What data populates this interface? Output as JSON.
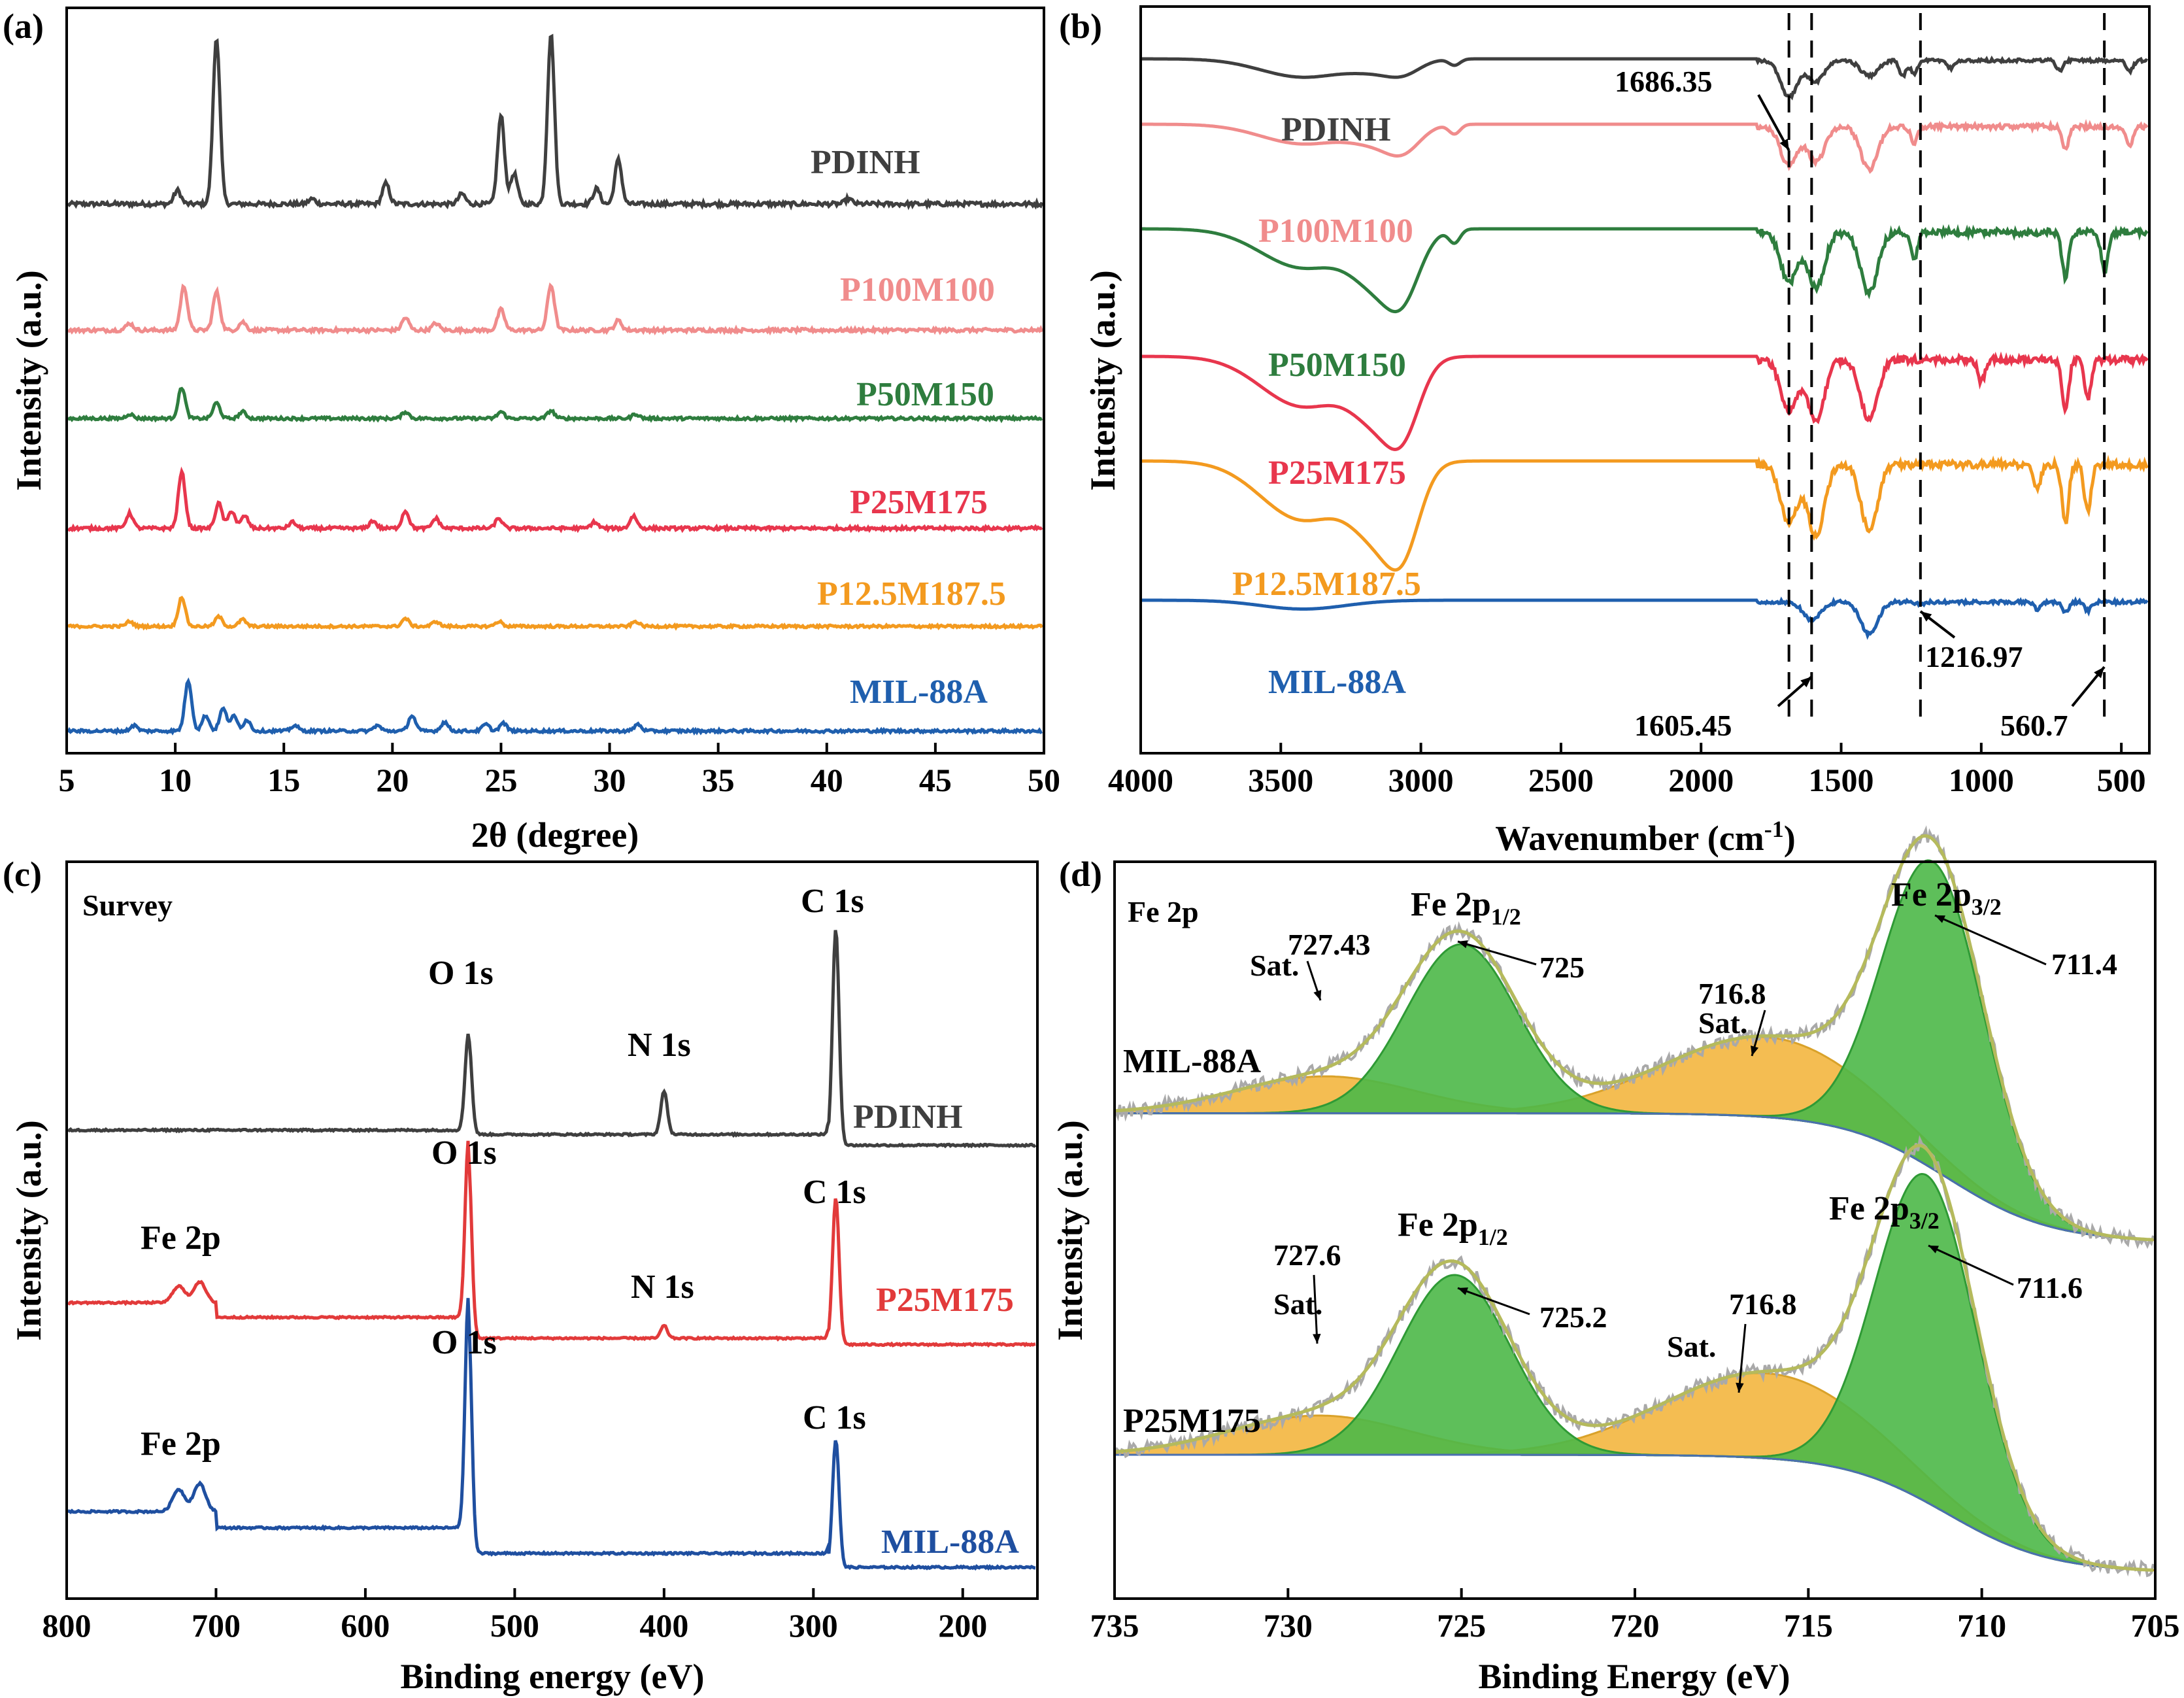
{
  "colors": {
    "PDINH": "#3f3f3f",
    "P100M100": "#f08c8c",
    "P50M150": "#2e7d3e",
    "P25M175": "#e8364d",
    "P12.5M187.5": "#f39a1f",
    "MIL-88A": "#1f5fae",
    "survey_PDINH": "#3f3f3f",
    "survey_P25M175": "#e23a3a",
    "survey_MIL88A": "#1f4fa0",
    "fit_green": "#4cb848",
    "fit_yellow": "#f2b134",
    "envelope": "#b5ba5c",
    "raw_gray": "#a9a9a9"
  },
  "chart_data": [
    {
      "panel": "(a)",
      "type": "line",
      "xlabel": "2θ (degree)",
      "ylabel": "Intensity (a.u.)",
      "xlim": [
        5,
        50
      ],
      "xticks": [
        5,
        10,
        15,
        20,
        25,
        30,
        35,
        40,
        45,
        50
      ],
      "y_scale": "stacked, arbitrary units",
      "series": [
        {
          "name": "PDINH",
          "peaks_2theta": [
            10.1,
            11.9,
            16.3,
            19.7,
            23.2,
            25.0,
            25.6,
            27.3,
            29.4,
            30.4,
            41.0
          ],
          "relative_heights": [
            0.08,
            0.98,
            0.03,
            0.12,
            0.06,
            0.52,
            0.18,
            1.0,
            0.09,
            0.26,
            0.03
          ]
        },
        {
          "name": "P100M100",
          "peaks_2theta": [
            7.9,
            10.4,
            11.9,
            13.1,
            20.6,
            22.0,
            25.0,
            27.3,
            30.4
          ],
          "relative_heights": [
            0.05,
            0.32,
            0.28,
            0.06,
            0.09,
            0.05,
            0.15,
            0.33,
            0.07
          ]
        },
        {
          "name": "P50M150",
          "peaks_2theta": [
            7.9,
            10.3,
            11.9,
            13.1,
            20.6,
            25.0,
            27.3,
            31.2
          ],
          "relative_heights": [
            0.04,
            0.28,
            0.14,
            0.06,
            0.06,
            0.06,
            0.07,
            0.04
          ]
        },
        {
          "name": "P25M175",
          "peaks_2theta": [
            7.9,
            10.3,
            12.0,
            12.6,
            13.2,
            15.4,
            19.1,
            20.6,
            22.0,
            24.9,
            29.3,
            31.1
          ],
          "relative_heights": [
            0.12,
            0.45,
            0.2,
            0.14,
            0.1,
            0.05,
            0.06,
            0.14,
            0.08,
            0.08,
            0.05,
            0.1
          ]
        },
        {
          "name": "P12.5M187.5",
          "peaks_2theta": [
            7.9,
            10.3,
            12.0,
            13.1,
            20.6,
            22.0,
            24.9,
            31.2
          ],
          "relative_heights": [
            0.05,
            0.3,
            0.1,
            0.07,
            0.08,
            0.05,
            0.05,
            0.05
          ]
        },
        {
          "name": "MIL-88A",
          "peaks_2theta": [
            8.1,
            10.6,
            11.4,
            12.2,
            12.7,
            13.3,
            15.5,
            19.3,
            20.9,
            22.4,
            24.3,
            25.1,
            31.3
          ],
          "relative_heights": [
            0.05,
            0.45,
            0.14,
            0.2,
            0.13,
            0.1,
            0.05,
            0.05,
            0.14,
            0.08,
            0.06,
            0.07,
            0.06
          ]
        }
      ]
    },
    {
      "panel": "(b)",
      "type": "line",
      "xlabel": "Wavenumber (cm",
      "xlabel_sup": "-1",
      "xlabel_close": ")",
      "ylabel": "Intensity (a.u.)",
      "xlim": [
        4000,
        400
      ],
      "xticks": [
        4000,
        3500,
        3000,
        2500,
        2000,
        1500,
        1000,
        500
      ],
      "dashed_lines_cm1": [
        1686.35,
        1605.45,
        1216.97,
        560.7
      ],
      "annotations": [
        "1686.35",
        "1605.45",
        "1216.97",
        "560.7"
      ],
      "series": [
        {
          "name": "PDINH",
          "bands_cm1": [
            3420,
            3150,
            3060,
            2880,
            1686,
            1590,
            1400,
            1280,
            1240,
            1110,
            720,
            470
          ],
          "relative_depths": [
            0.35,
            0.18,
            0.2,
            0.12,
            0.7,
            0.4,
            0.3,
            0.3,
            0.25,
            0.15,
            0.2,
            0.2
          ]
        },
        {
          "name": "P100M100",
          "bands_cm1": [
            3420,
            3150,
            3060,
            2880,
            1686,
            1590,
            1400,
            1240,
            700,
            470
          ],
          "relative_depths": [
            0.25,
            0.2,
            0.25,
            0.12,
            0.5,
            0.45,
            0.55,
            0.2,
            0.3,
            0.25
          ]
        },
        {
          "name": "P50M150",
          "bands_cm1": [
            3420,
            3150,
            3060,
            2880,
            1686,
            1590,
            1400,
            1240,
            700,
            560
          ],
          "relative_depths": [
            0.35,
            0.45,
            0.4,
            0.12,
            0.45,
            0.5,
            0.55,
            0.25,
            0.4,
            0.35
          ]
        },
        {
          "name": "P25M175",
          "bands_cm1": [
            3420,
            3150,
            3060,
            1686,
            1590,
            1400,
            1000,
            700,
            620
          ],
          "relative_depths": [
            0.45,
            0.5,
            0.45,
            0.45,
            0.55,
            0.55,
            0.2,
            0.45,
            0.35
          ]
        },
        {
          "name": "P12.5M187.5",
          "bands_cm1": [
            3420,
            3150,
            3060,
            1686,
            1590,
            1400,
            800,
            700,
            620
          ],
          "relative_depths": [
            0.5,
            0.55,
            0.5,
            0.5,
            0.6,
            0.55,
            0.2,
            0.5,
            0.4
          ]
        },
        {
          "name": "MIL-88A",
          "bands_cm1": [
            3420,
            1605,
            1400,
            1216,
            800,
            700,
            620
          ],
          "relative_depths": [
            0.15,
            0.3,
            0.55,
            0.05,
            0.12,
            0.18,
            0.15
          ]
        }
      ]
    },
    {
      "panel": "(c)",
      "type": "line",
      "xlabel": "Binding energy (eV)",
      "ylabel": "Intensity (a.u.)",
      "xlim": [
        800,
        150
      ],
      "xticks": [
        800,
        700,
        600,
        500,
        400,
        300,
        200
      ],
      "header": "Survey",
      "peak_labels": {
        "O1s": "O 1s",
        "N1s": "N 1s",
        "C1s": "C 1s",
        "Fe2p": "Fe 2p"
      },
      "series": [
        {
          "name": "PDINH",
          "peaks_eV": {
            "O 1s": 531,
            "N 1s": 400,
            "C 1s": 285
          },
          "relative_heights": {
            "O 1s": 0.45,
            "N 1s": 0.2,
            "C 1s": 1.0
          }
        },
        {
          "name": "P25M175",
          "peaks_eV": {
            "Fe 2p": 711,
            "O 1s": 531,
            "N 1s": 400,
            "C 1s": 285
          },
          "relative_heights": {
            "Fe 2p": 0.1,
            "O 1s": 0.85,
            "N 1s": 0.06,
            "C 1s": 0.7
          }
        },
        {
          "name": "MIL-88A",
          "peaks_eV": {
            "Fe 2p": 711,
            "O 1s": 531,
            "C 1s": 285
          },
          "relative_heights": {
            "Fe 2p": 0.12,
            "O 1s": 1.0,
            "C 1s": 0.55
          }
        }
      ]
    },
    {
      "panel": "(d)",
      "type": "line",
      "xlabel": "Binding Energy (eV)",
      "ylabel": "Intensity (a.u.)",
      "xlim": [
        735,
        705
      ],
      "xticks": [
        735,
        730,
        725,
        720,
        715,
        710,
        705
      ],
      "header": "Fe 2p",
      "series": [
        {
          "name": "MIL-88A",
          "components": [
            {
              "label": "Fe 2p1/2",
              "center_eV": 725.0,
              "annotation": "725"
            },
            {
              "label": "Fe 2p3/2",
              "center_eV": 711.4,
              "annotation": "711.4"
            },
            {
              "label": "Sat.",
              "center_eV": 727.43,
              "annotation": "727.43"
            },
            {
              "label": "Sat.",
              "center_eV": 716.8,
              "annotation": "716.8"
            }
          ]
        },
        {
          "name": "P25M175",
          "components": [
            {
              "label": "Fe 2p1/2",
              "center_eV": 725.2,
              "annotation": "725.2"
            },
            {
              "label": "Fe 2p3/2",
              "center_eV": 711.6,
              "annotation": "711.6"
            },
            {
              "label": "Sat.",
              "center_eV": 727.6,
              "annotation": "727.6"
            },
            {
              "label": "Sat.",
              "center_eV": 716.8,
              "annotation": "716.8"
            }
          ]
        }
      ],
      "labels": {
        "fe2p12_main": "Fe 2p",
        "fe2p12_sub": "1/2",
        "fe2p32_main": "Fe 2p",
        "fe2p32_sub": "3/2",
        "sat": "Sat."
      }
    }
  ]
}
